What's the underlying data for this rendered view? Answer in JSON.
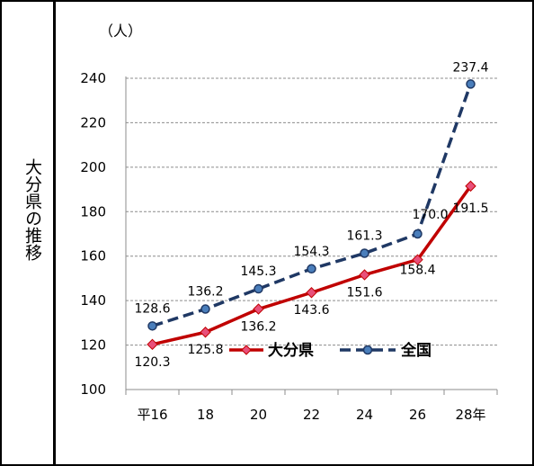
{
  "side_title": "大分県の推移",
  "chart_data": {
    "type": "line",
    "unit_label": "（人）",
    "categories": [
      "平16",
      "18",
      "20",
      "22",
      "24",
      "26",
      "28年"
    ],
    "ylim": [
      100,
      240
    ],
    "yticks": [
      100,
      120,
      140,
      160,
      180,
      200,
      220,
      240
    ],
    "grid": true,
    "legend_position": "bottom-right",
    "series": [
      {
        "name": "大分県",
        "values": [
          120.3,
          125.8,
          136.2,
          143.6,
          151.6,
          158.4,
          191.5
        ],
        "labels": [
          "120.3",
          "125.8",
          "136.2",
          "143.6",
          "151.6",
          "158.4",
          "191.5"
        ],
        "color": "#c00000",
        "marker_color": "#e8507a",
        "line_style": "solid"
      },
      {
        "name": "全国",
        "values": [
          128.6,
          136.2,
          145.3,
          154.3,
          161.3,
          170.0,
          237.4
        ],
        "labels": [
          "128.6",
          "136.2",
          "145.3",
          "154.3",
          "161.3",
          "170.0",
          "237.4"
        ],
        "color": "#1f3864",
        "marker_color": "#4a7ebb",
        "line_style": "dashed"
      }
    ]
  }
}
